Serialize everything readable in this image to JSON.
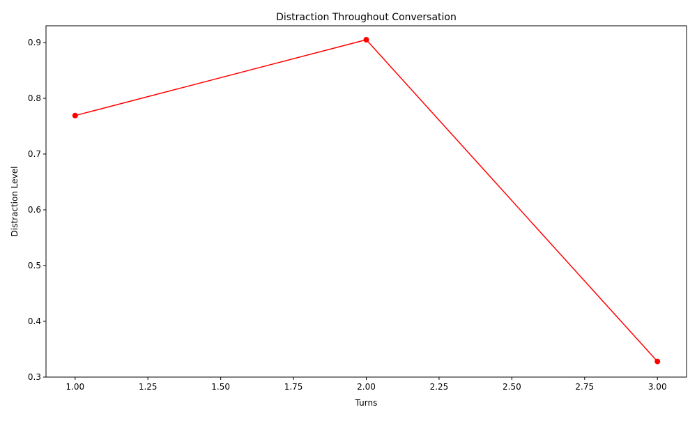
{
  "chart_data": {
    "type": "line",
    "title": "Distraction Throughout Conversation",
    "xlabel": "Turns",
    "ylabel": "Distraction Level",
    "xlim": [
      0.9,
      3.1
    ],
    "ylim": [
      0.3,
      0.93
    ],
    "xticks": [
      1.0,
      1.25,
      1.5,
      1.75,
      2.0,
      2.25,
      2.5,
      2.75,
      3.0
    ],
    "xtick_labels": [
      "1.00",
      "1.25",
      "1.50",
      "1.75",
      "2.00",
      "2.25",
      "2.50",
      "2.75",
      "3.00"
    ],
    "yticks": [
      0.3,
      0.4,
      0.5,
      0.6,
      0.7,
      0.8,
      0.9
    ],
    "ytick_labels": [
      "0.3",
      "0.4",
      "0.5",
      "0.6",
      "0.7",
      "0.8",
      "0.9"
    ],
    "grid": false,
    "legend": "none",
    "series": [
      {
        "color": "#ff0000",
        "marker": "circle",
        "x": [
          1,
          2,
          3
        ],
        "y": [
          0.769,
          0.905,
          0.328
        ]
      }
    ]
  }
}
